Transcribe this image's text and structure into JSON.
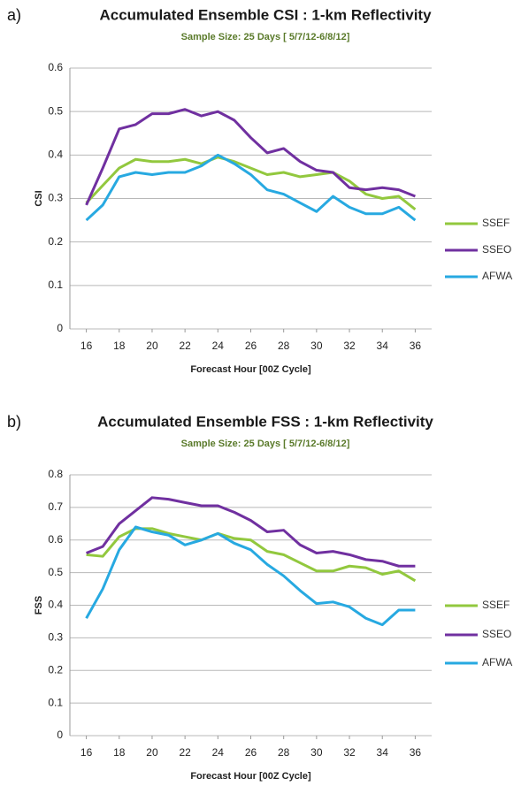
{
  "chart_data": [
    {
      "type": "line",
      "panel_label": "a)",
      "title": "Accumulated Ensemble CSI : 1-km Reflectivity",
      "subtitle": "Sample Size: 25 Days [ 5/7/12-6/8/12]",
      "x_label": "Forecast Hour [00Z Cycle]",
      "y_label": "CSI",
      "x": [
        16,
        17,
        18,
        19,
        20,
        21,
        22,
        23,
        24,
        25,
        26,
        27,
        28,
        29,
        30,
        31,
        32,
        33,
        34,
        35,
        36
      ],
      "xlim": [
        15,
        37
      ],
      "xticks": [
        16,
        18,
        20,
        22,
        24,
        26,
        28,
        30,
        32,
        34,
        36
      ],
      "ylim": [
        0,
        0.6
      ],
      "yticks": [
        0,
        0.1,
        0.2,
        0.3,
        0.4,
        0.5,
        0.6
      ],
      "grid": true,
      "series": [
        {
          "name": "SSEF",
          "color": "#92c83e",
          "values": [
            0.29,
            0.33,
            0.37,
            0.39,
            0.385,
            0.385,
            0.39,
            0.38,
            0.395,
            0.385,
            0.37,
            0.355,
            0.36,
            0.35,
            0.355,
            0.36,
            0.34,
            0.31,
            0.3,
            0.305,
            0.275
          ]
        },
        {
          "name": "SSEO",
          "color": "#7030a0",
          "values": [
            0.285,
            0.37,
            0.46,
            0.47,
            0.495,
            0.495,
            0.505,
            0.49,
            0.5,
            0.48,
            0.44,
            0.405,
            0.415,
            0.385,
            0.365,
            0.36,
            0.325,
            0.32,
            0.325,
            0.32,
            0.305
          ]
        },
        {
          "name": "AFWA",
          "color": "#27a9e1",
          "values": [
            0.25,
            0.285,
            0.35,
            0.36,
            0.355,
            0.36,
            0.36,
            0.375,
            0.4,
            0.38,
            0.355,
            0.32,
            0.31,
            0.29,
            0.27,
            0.305,
            0.28,
            0.265,
            0.265,
            0.28,
            0.25
          ]
        }
      ]
    },
    {
      "type": "line",
      "panel_label": "b)",
      "title": "Accumulated Ensemble FSS : 1-km Reflectivity",
      "subtitle": "Sample Size: 25 Days [ 5/7/12-6/8/12]",
      "x_label": "Forecast Hour [00Z Cycle]",
      "y_label": "FSS",
      "x": [
        16,
        17,
        18,
        19,
        20,
        21,
        22,
        23,
        24,
        25,
        26,
        27,
        28,
        29,
        30,
        31,
        32,
        33,
        34,
        35,
        36
      ],
      "xlim": [
        15,
        37
      ],
      "xticks": [
        16,
        18,
        20,
        22,
        24,
        26,
        28,
        30,
        32,
        34,
        36
      ],
      "ylim": [
        0,
        0.8
      ],
      "yticks": [
        0,
        0.1,
        0.2,
        0.3,
        0.4,
        0.5,
        0.6,
        0.7,
        0.8
      ],
      "grid": true,
      "series": [
        {
          "name": "SSEF",
          "color": "#92c83e",
          "values": [
            0.555,
            0.55,
            0.61,
            0.635,
            0.635,
            0.62,
            0.61,
            0.6,
            0.62,
            0.605,
            0.6,
            0.565,
            0.555,
            0.53,
            0.505,
            0.505,
            0.52,
            0.515,
            0.495,
            0.505,
            0.475
          ]
        },
        {
          "name": "SSEO",
          "color": "#7030a0",
          "values": [
            0.56,
            0.58,
            0.65,
            0.69,
            0.73,
            0.725,
            0.715,
            0.705,
            0.705,
            0.685,
            0.66,
            0.625,
            0.63,
            0.585,
            0.56,
            0.565,
            0.555,
            0.54,
            0.535,
            0.52,
            0.52
          ]
        },
        {
          "name": "AFWA",
          "color": "#27a9e1",
          "values": [
            0.36,
            0.45,
            0.57,
            0.64,
            0.625,
            0.615,
            0.585,
            0.6,
            0.62,
            0.59,
            0.57,
            0.525,
            0.49,
            0.445,
            0.405,
            0.41,
            0.395,
            0.36,
            0.34,
            0.385,
            0.385
          ]
        }
      ]
    }
  ]
}
